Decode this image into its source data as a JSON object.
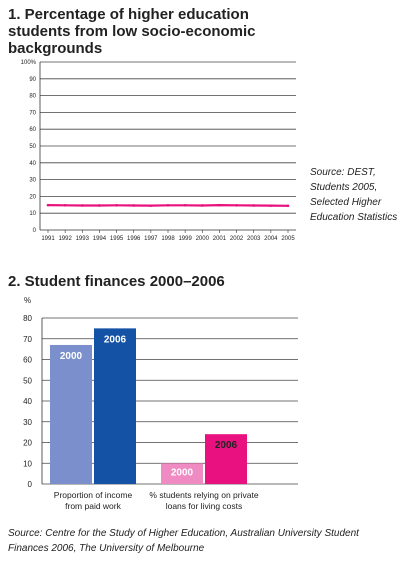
{
  "chart1_title": "1. Percentage of higher education students from low socio-economic backgrounds",
  "chart1_source": "Source: DEST, Students 2005, Selected Higher Education Statistics",
  "chart2_title": "2. Student finances 2000–2006",
  "chart2_source": "Source: Centre for the Study of Higher Education, Australian University Student Finances 2006, The University of Melbourne",
  "chart_data": [
    {
      "type": "line",
      "title": "1. Percentage of higher education students from low socio-economic backgrounds",
      "x": [
        "1991",
        "1992",
        "1993",
        "1994",
        "1995",
        "1996",
        "1997",
        "1998",
        "1999",
        "2000",
        "2001",
        "2002",
        "2003",
        "2004",
        "2005"
      ],
      "series": [
        {
          "values": [
            14.8,
            14.7,
            14.6,
            14.6,
            14.7,
            14.6,
            14.5,
            14.7,
            14.7,
            14.6,
            14.8,
            14.7,
            14.6,
            14.5,
            14.4
          ],
          "color": "#e8117f"
        }
      ],
      "yticks": [
        "100%",
        "90",
        "80",
        "70",
        "60",
        "50",
        "40",
        "30",
        "20",
        "10",
        "0"
      ],
      "ylim": [
        0,
        100
      ],
      "grid": true
    },
    {
      "type": "bar",
      "title": "2. Student finances 2000–2006",
      "ylabel": "%",
      "categories": [
        "Proportion of income from paid work",
        "% students relying on private loans for living costs"
      ],
      "category_lines": [
        [
          "Proportion of income",
          "from paid work"
        ],
        [
          "% students relying on private",
          "loans for living costs"
        ]
      ],
      "series": [
        {
          "name": "2000",
          "values": [
            67,
            10
          ],
          "colors": [
            "#7b8fcd",
            "#f08ac2"
          ]
        },
        {
          "name": "2006",
          "values": [
            75,
            24
          ],
          "colors": [
            "#1452a6",
            "#e8117f"
          ]
        }
      ],
      "yticks": [
        "80",
        "70",
        "60",
        "50",
        "40",
        "30",
        "20",
        "10",
        "0"
      ],
      "ylim": [
        0,
        80
      ],
      "grid": true
    }
  ]
}
